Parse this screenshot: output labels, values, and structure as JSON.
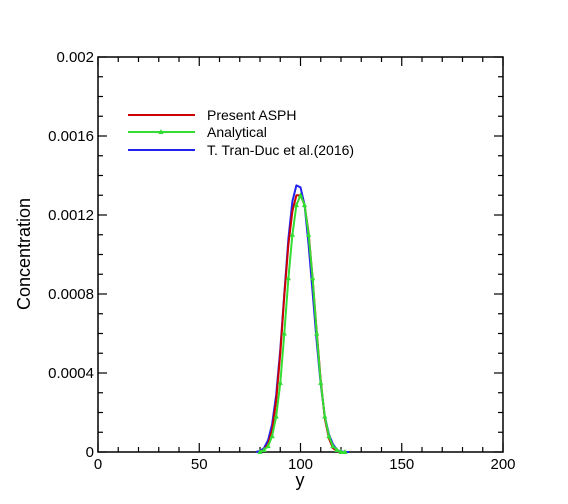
{
  "chart_data": {
    "type": "line",
    "xlabel": "y",
    "ylabel": "Concentration",
    "xlim": [
      0,
      200
    ],
    "ylim": [
      0,
      0.002
    ],
    "x_ticks": [
      "0",
      "50",
      "100",
      "150",
      "200"
    ],
    "y_ticks": [
      "0",
      "0.0004",
      "0.0008",
      "0.0012",
      "0.0016",
      "0.002"
    ],
    "grid": false,
    "legend_position": "top-left",
    "series": [
      {
        "name": "Present ASPH",
        "color": "#cc0000",
        "marker": "none",
        "x": [
          80,
          82,
          84,
          86,
          88,
          90,
          92,
          94,
          96,
          98,
          100,
          102,
          104,
          106,
          108,
          110,
          112,
          114,
          116,
          118,
          120,
          122
        ],
        "y": [
          0,
          1e-05,
          4e-05,
          0.00011,
          0.00026,
          0.0005,
          0.00079,
          0.00105,
          0.00122,
          0.0013,
          0.0013,
          0.00125,
          0.00111,
          0.00088,
          0.00061,
          0.00036,
          0.00017,
          7e-05,
          2e-05,
          5e-06,
          0,
          0
        ]
      },
      {
        "name": "Analytical",
        "color": "#33dd33",
        "marker": "triangle",
        "x": [
          80,
          82,
          84,
          86,
          88,
          90,
          92,
          94,
          96,
          98,
          100,
          102,
          104,
          106,
          108,
          110,
          112,
          114,
          116,
          118,
          120,
          122
        ],
        "y": [
          0,
          1e-05,
          3e-05,
          8e-05,
          0.00018,
          0.00035,
          0.0006,
          0.00088,
          0.0011,
          0.00125,
          0.0013,
          0.00125,
          0.0011,
          0.00088,
          0.0006,
          0.00035,
          0.00018,
          8e-05,
          3e-05,
          1e-05,
          0,
          0
        ]
      },
      {
        "name": "T. Tran-Duc et al.(2016)",
        "color": "#2222ee",
        "marker": "none",
        "x": [
          78,
          80,
          82,
          84,
          86,
          88,
          90,
          92,
          94,
          96,
          98,
          100,
          102,
          104,
          106,
          108,
          110,
          112,
          114,
          116,
          118,
          120,
          122,
          124
        ],
        "y": [
          0,
          5e-06,
          2e-05,
          6e-05,
          0.00014,
          0.00029,
          0.00052,
          0.0008,
          0.00108,
          0.00127,
          0.00135,
          0.00134,
          0.00125,
          0.00105,
          0.00081,
          0.00056,
          0.00034,
          0.00018,
          9e-05,
          4e-05,
          1e-05,
          3e-06,
          0,
          0
        ]
      }
    ]
  }
}
